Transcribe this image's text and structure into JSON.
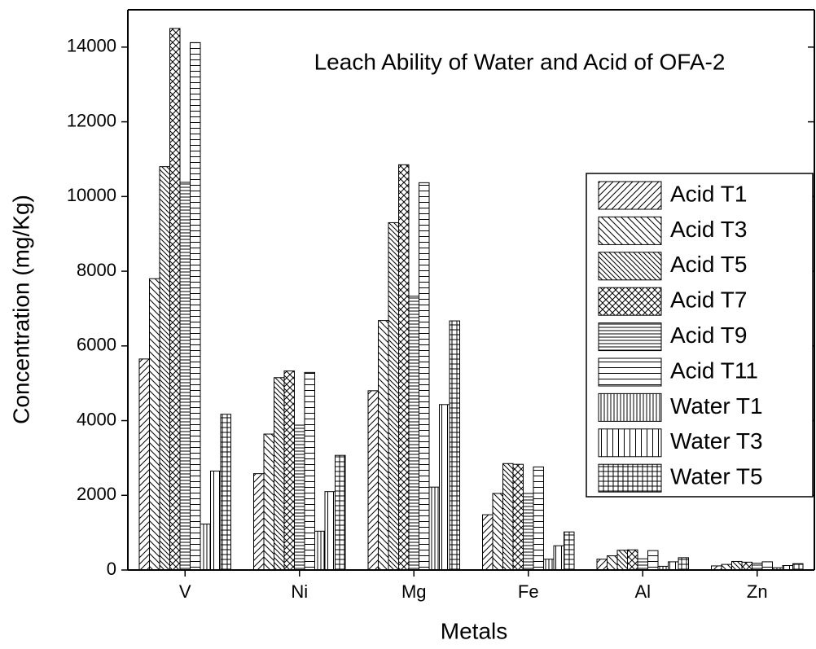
{
  "chart_data": {
    "type": "bar",
    "title": "Leach Ability of Water and Acid of OFA-2",
    "x_label": "Metals",
    "y_label": "Concentration (mg/Kg)",
    "categories": [
      "V",
      "Ni",
      "Mg",
      "Fe",
      "Al",
      "Zn"
    ],
    "series": [
      {
        "name": "Acid T1",
        "color": "#000000",
        "hatch": "diag-up",
        "values": [
          5650,
          2580,
          4800,
          1480,
          290,
          110
        ]
      },
      {
        "name": "Acid T3",
        "color": "#000000",
        "hatch": "diag-down",
        "values": [
          7800,
          3640,
          6680,
          2050,
          380,
          150
        ]
      },
      {
        "name": "Acid T5",
        "color": "#000000",
        "hatch": "diag-down-dense",
        "values": [
          10800,
          5150,
          9300,
          2850,
          530,
          230
        ]
      },
      {
        "name": "Acid T7",
        "color": "#000000",
        "hatch": "cross-diag",
        "values": [
          14500,
          5330,
          10850,
          2830,
          540,
          210
        ]
      },
      {
        "name": "Acid T9",
        "color": "#000000",
        "hatch": "horizontal-dense",
        "values": [
          10380,
          3880,
          7330,
          2050,
          300,
          180
        ]
      },
      {
        "name": "Acid T11",
        "color": "#000000",
        "hatch": "horizontal",
        "values": [
          14120,
          5290,
          10370,
          2760,
          520,
          220
        ]
      },
      {
        "name": "Water T1",
        "color": "#000000",
        "hatch": "vertical-dense",
        "values": [
          1230,
          1040,
          2220,
          290,
          100,
          60
        ]
      },
      {
        "name": "Water T3",
        "color": "#000000",
        "hatch": "vertical",
        "values": [
          2650,
          2100,
          4430,
          650,
          220,
          120
        ]
      },
      {
        "name": "Water T5",
        "color": "#000000",
        "hatch": "grid",
        "values": [
          4170,
          3070,
          6670,
          1020,
          330,
          170
        ]
      }
    ],
    "ylim": [
      0,
      15000
    ],
    "yticks": [
      0,
      2000,
      4000,
      6000,
      8000,
      10000,
      12000,
      14000
    ],
    "legend": "right"
  }
}
